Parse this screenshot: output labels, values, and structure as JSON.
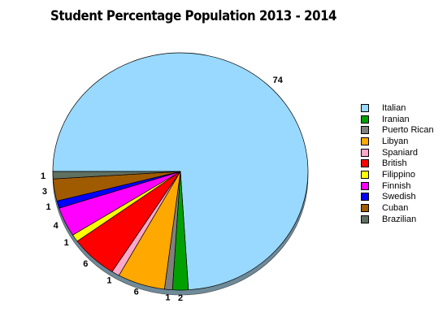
{
  "chart_data": {
    "type": "pie",
    "title": "Student Percentage Population 2013 - 2014",
    "legend_position": "right",
    "slices": [
      {
        "name": "Italian",
        "value": 74,
        "color": "#99D9FF"
      },
      {
        "name": "Iranian",
        "value": 2,
        "color": "#00A000"
      },
      {
        "name": "Puerto Rican",
        "value": 1,
        "color": "#808080"
      },
      {
        "name": "Libyan",
        "value": 6,
        "color": "#FFA800"
      },
      {
        "name": "Spaniard",
        "value": 1,
        "color": "#FFA8C8"
      },
      {
        "name": "British",
        "value": 6,
        "color": "#FF0000"
      },
      {
        "name": "Filippino",
        "value": 1,
        "color": "#FFFF00"
      },
      {
        "name": "Finnish",
        "value": 4,
        "color": "#FF00FF"
      },
      {
        "name": "Swedish",
        "value": 1,
        "color": "#0000FF"
      },
      {
        "name": "Cuban",
        "value": 3,
        "color": "#A05A00"
      },
      {
        "name": "Brazilian",
        "value": 1,
        "color": "#607060"
      }
    ]
  }
}
